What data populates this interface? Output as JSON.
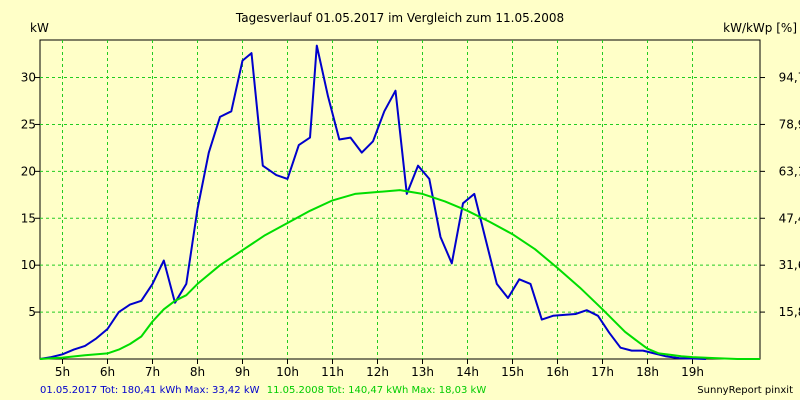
{
  "chart_data": {
    "type": "line",
    "title": "Tagesverlauf 01.05.2017 im Vergleich zum 11.05.2008",
    "ylabel_left": "kW",
    "ylabel_right": "kW/kWp [%]",
    "x_unit": "hour",
    "xlim": [
      4.5,
      20.5
    ],
    "ylim": [
      0,
      34
    ],
    "grid": true,
    "x_ticks": [
      {
        "v": 5,
        "label": "5h"
      },
      {
        "v": 6,
        "label": "6h"
      },
      {
        "v": 7,
        "label": "7h"
      },
      {
        "v": 8,
        "label": "8h"
      },
      {
        "v": 9,
        "label": "9h"
      },
      {
        "v": 10,
        "label": "10h"
      },
      {
        "v": 11,
        "label": "11h"
      },
      {
        "v": 12,
        "label": "12h"
      },
      {
        "v": 13,
        "label": "13h"
      },
      {
        "v": 14,
        "label": "14h"
      },
      {
        "v": 15,
        "label": "15h"
      },
      {
        "v": 16,
        "label": "16h"
      },
      {
        "v": 17,
        "label": "17h"
      },
      {
        "v": 18,
        "label": "18h"
      },
      {
        "v": 19,
        "label": "19h"
      }
    ],
    "y_ticks_left": [
      {
        "v": 5,
        "label": "5"
      },
      {
        "v": 10,
        "label": "10"
      },
      {
        "v": 15,
        "label": "15"
      },
      {
        "v": 20,
        "label": "20"
      },
      {
        "v": 25,
        "label": "25"
      },
      {
        "v": 30,
        "label": "30"
      }
    ],
    "y_ticks_right": [
      {
        "v": 5,
        "label": "15,8"
      },
      {
        "v": 10,
        "label": "31,6"
      },
      {
        "v": 15,
        "label": "47,4"
      },
      {
        "v": 20,
        "label": "63,1"
      },
      {
        "v": 25,
        "label": "78,9"
      },
      {
        "v": 30,
        "label": "94,7"
      }
    ],
    "series": [
      {
        "name": "01.05.2017",
        "color": "#0000cc",
        "points": [
          [
            4.5,
            0
          ],
          [
            4.75,
            0.2
          ],
          [
            5.0,
            0.5
          ],
          [
            5.25,
            1.0
          ],
          [
            5.5,
            1.4
          ],
          [
            5.75,
            2.2
          ],
          [
            6.0,
            3.2
          ],
          [
            6.25,
            5.0
          ],
          [
            6.5,
            5.8
          ],
          [
            6.75,
            6.2
          ],
          [
            7.0,
            8.0
          ],
          [
            7.25,
            10.5
          ],
          [
            7.5,
            6.0
          ],
          [
            7.75,
            8.0
          ],
          [
            8.0,
            16.0
          ],
          [
            8.25,
            22.0
          ],
          [
            8.5,
            25.8
          ],
          [
            8.75,
            26.4
          ],
          [
            9.0,
            31.8
          ],
          [
            9.2,
            32.6
          ],
          [
            9.45,
            20.6
          ],
          [
            9.75,
            19.6
          ],
          [
            10.0,
            19.2
          ],
          [
            10.25,
            22.8
          ],
          [
            10.5,
            23.6
          ],
          [
            10.65,
            33.4
          ],
          [
            10.9,
            28.0
          ],
          [
            11.15,
            23.4
          ],
          [
            11.4,
            23.6
          ],
          [
            11.65,
            22.0
          ],
          [
            11.9,
            23.2
          ],
          [
            12.15,
            26.4
          ],
          [
            12.4,
            28.6
          ],
          [
            12.65,
            17.6
          ],
          [
            12.9,
            20.6
          ],
          [
            13.15,
            19.2
          ],
          [
            13.4,
            13.0
          ],
          [
            13.65,
            10.2
          ],
          [
            13.9,
            16.6
          ],
          [
            14.15,
            17.6
          ],
          [
            14.4,
            12.8
          ],
          [
            14.65,
            8.0
          ],
          [
            14.9,
            6.5
          ],
          [
            15.15,
            8.5
          ],
          [
            15.4,
            8.0
          ],
          [
            15.65,
            4.2
          ],
          [
            15.9,
            4.6
          ],
          [
            16.15,
            4.7
          ],
          [
            16.4,
            4.8
          ],
          [
            16.65,
            5.2
          ],
          [
            16.9,
            4.6
          ],
          [
            17.15,
            2.8
          ],
          [
            17.4,
            1.2
          ],
          [
            17.65,
            0.9
          ],
          [
            17.9,
            0.9
          ],
          [
            18.15,
            0.6
          ],
          [
            18.4,
            0.3
          ],
          [
            18.7,
            0.1
          ],
          [
            19.0,
            0.05
          ],
          [
            19.3,
            0
          ]
        ]
      },
      {
        "name": "11.05.2008",
        "color": "#00dd00",
        "points": [
          [
            4.5,
            0
          ],
          [
            5.0,
            0.15
          ],
          [
            5.5,
            0.4
          ],
          [
            6.0,
            0.6
          ],
          [
            6.25,
            1.0
          ],
          [
            6.5,
            1.6
          ],
          [
            6.75,
            2.4
          ],
          [
            7.0,
            4.0
          ],
          [
            7.25,
            5.3
          ],
          [
            7.5,
            6.2
          ],
          [
            7.75,
            6.8
          ],
          [
            8.0,
            8.0
          ],
          [
            8.5,
            10.0
          ],
          [
            9.0,
            11.6
          ],
          [
            9.5,
            13.2
          ],
          [
            10.0,
            14.5
          ],
          [
            10.5,
            15.8
          ],
          [
            11.0,
            16.9
          ],
          [
            11.5,
            17.6
          ],
          [
            12.0,
            17.8
          ],
          [
            12.5,
            18.0
          ],
          [
            13.0,
            17.6
          ],
          [
            13.5,
            16.8
          ],
          [
            14.0,
            15.8
          ],
          [
            14.5,
            14.6
          ],
          [
            15.0,
            13.3
          ],
          [
            15.5,
            11.7
          ],
          [
            16.0,
            9.7
          ],
          [
            16.5,
            7.6
          ],
          [
            17.0,
            5.3
          ],
          [
            17.5,
            2.9
          ],
          [
            17.8,
            1.8
          ],
          [
            18.0,
            1.1
          ],
          [
            18.25,
            0.6
          ],
          [
            18.5,
            0.45
          ],
          [
            18.75,
            0.3
          ],
          [
            19.0,
            0.2
          ],
          [
            19.5,
            0.1
          ],
          [
            20.0,
            0
          ],
          [
            20.5,
            0
          ]
        ]
      }
    ]
  },
  "footer": {
    "left_text": "01.05.2017 Tot: 180,41 kWh Max: 33,42 kW",
    "right_text": "11.05.2008 Tot: 140,47 kWh Max: 18,03 kW",
    "credit": "SunnyReport pinxit"
  },
  "colors": {
    "background": "#ffffc8",
    "grid": "#22cc22",
    "footer_blue": "#0000cc",
    "footer_green": "#00cc00"
  }
}
